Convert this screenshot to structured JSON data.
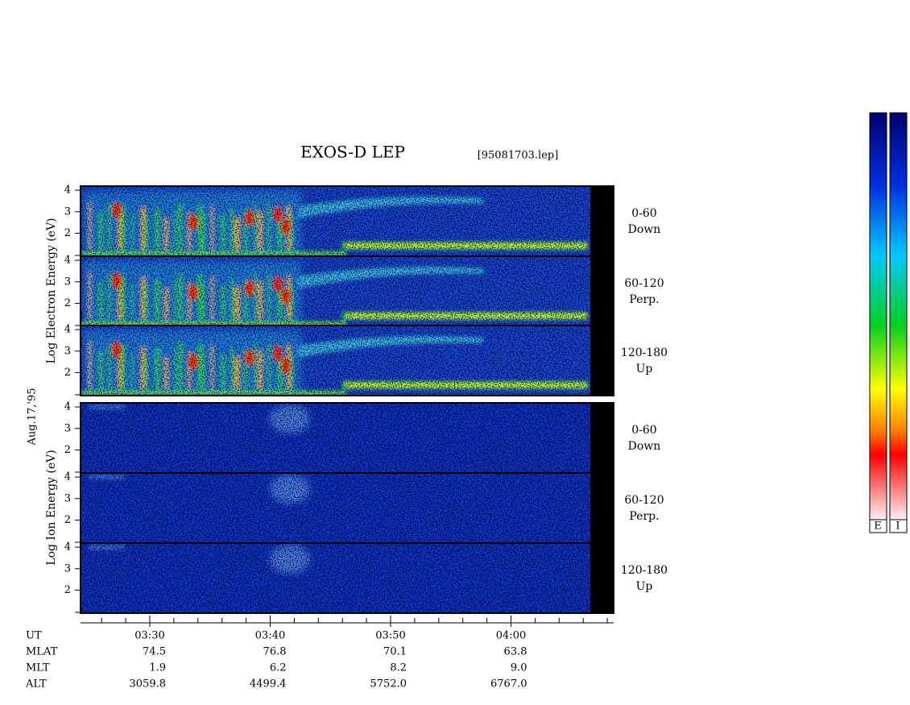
{
  "title": "EXOS-D LEP",
  "file": "[95081703.lep]",
  "date": "Aug.17,'95",
  "electron_axis_label": "Log Electron Energy (eV)",
  "ion_axis_label": "Log Ion Energy (eV)",
  "energy_axis": {
    "ylim": [
      0.93,
      4.19
    ],
    "yticks": [
      2,
      3,
      4
    ]
  },
  "pitch_angles": [
    {
      "range": "0-60",
      "direction": "Down"
    },
    {
      "range": "60-120",
      "direction": "Perp."
    },
    {
      "range": "120-180",
      "direction": "Up"
    }
  ],
  "ephemeris": [
    {
      "label": "UT",
      "values": [
        "03:30",
        "03:40",
        "03:50",
        "04:00"
      ]
    },
    {
      "label": "MLAT",
      "values": [
        "74.5",
        "76.8",
        "70.1",
        "63.8"
      ]
    },
    {
      "label": "MLT",
      "values": [
        "1.9",
        "6.2",
        "8.2",
        "9.0"
      ]
    },
    {
      "label": "ALT",
      "values": [
        "3059.8",
        "4499.4",
        "5752.0",
        "6767.0"
      ]
    }
  ],
  "colorbars": [
    "E",
    "I"
  ]
}
